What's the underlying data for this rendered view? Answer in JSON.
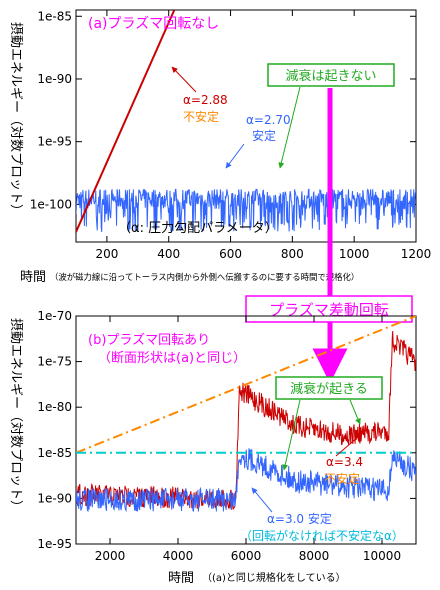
{
  "chart_data": [
    {
      "type": "line",
      "panel": "a",
      "title": "(a)プラズマ回転なし",
      "ylabel": "摂動エネルギー（対数プロット）",
      "xlabel": "時間",
      "xlabel_note": "（波が磁力線に沿ってトーラス内側から外側へ伝搬するのに要する時間で規格化）",
      "xlim": [
        100,
        1200
      ],
      "ylim": [
        -103,
        -84.5
      ],
      "y_scale": "log",
      "xticks": [
        200,
        400,
        600,
        800,
        1000,
        1200
      ],
      "yticks": [
        "1e-85",
        "1e-90",
        "1e-95",
        "1e-100"
      ],
      "ytick_values": [
        -85,
        -90,
        -95,
        -100
      ],
      "series": [
        {
          "name": "α=2.88",
          "status": "不安定",
          "color": "#cc0000",
          "x": [
            100,
            418
          ],
          "y": [
            -102.2,
            -84.5
          ]
        },
        {
          "name": "α=2.70",
          "status": "安定",
          "color": "#3366ff",
          "x": [
            100,
            1200
          ],
          "y_band": [
            -102.2,
            -98.8
          ],
          "y_mean": -99.8
        }
      ],
      "annotations": [
        "α: 圧力勾配パラメータ"
      ],
      "callout": "減衰は起きない",
      "colors": {
        "unstable": "#cc0000",
        "stable": "#3366ff",
        "title": "#ff00ff",
        "callout": "#22aa22"
      }
    },
    {
      "type": "line",
      "panel": "b",
      "title": "(b)プラズマ回転あり",
      "subtitle": "（断面形状は(a)と同じ）",
      "ylabel": "摂動エネルギー（対数プロット）",
      "xlabel": "時間",
      "xlabel_note": "（(a)と同じ規格化をしている）",
      "xlim": [
        1000,
        11000
      ],
      "ylim": [
        -95,
        -70
      ],
      "y_scale": "log",
      "xticks": [
        2000,
        4000,
        6000,
        8000,
        10000
      ],
      "yticks": [
        "1e-70",
        "1e-75",
        "1e-80",
        "1e-85",
        "1e-90",
        "1e-95"
      ],
      "ytick_values": [
        -70,
        -75,
        -80,
        -85,
        -90,
        -95
      ],
      "series": [
        {
          "name": "α=3.4",
          "status": "不安定",
          "color": "#cc0000",
          "x": [
            1000,
            5700,
            5800,
            7500,
            9000,
            10200,
            10300,
            11000
          ],
          "y": [
            -89.0,
            -89.5,
            -77.5,
            -81.5,
            -82.5,
            -82.0,
            -72.0,
            -74.5
          ]
        },
        {
          "name": "α=3.0",
          "status": "安定",
          "note": "（回転がなければ不安定なα）",
          "color": "#3366ff",
          "x": [
            1000,
            5700,
            5800,
            7500,
            10200,
            10300,
            11000
          ],
          "y": [
            -89.5,
            -89.5,
            -84.5,
            -87.5,
            -88.5,
            -84.8,
            -86.5
          ]
        },
        {
          "name": "growth-rate reference",
          "style": "dash-dot",
          "color": "#ff8800",
          "x": [
            1000,
            11000
          ],
          "y": [
            -85,
            -70
          ]
        },
        {
          "name": "stable reference",
          "style": "dash-dot",
          "color": "#00cccc",
          "x": [
            1000,
            11000
          ],
          "y": [
            -85,
            -85
          ]
        }
      ],
      "callout": "減衰が起きる"
    }
  ],
  "banner": {
    "label": "プラズマ差動回転",
    "color": "#ff00ff"
  }
}
